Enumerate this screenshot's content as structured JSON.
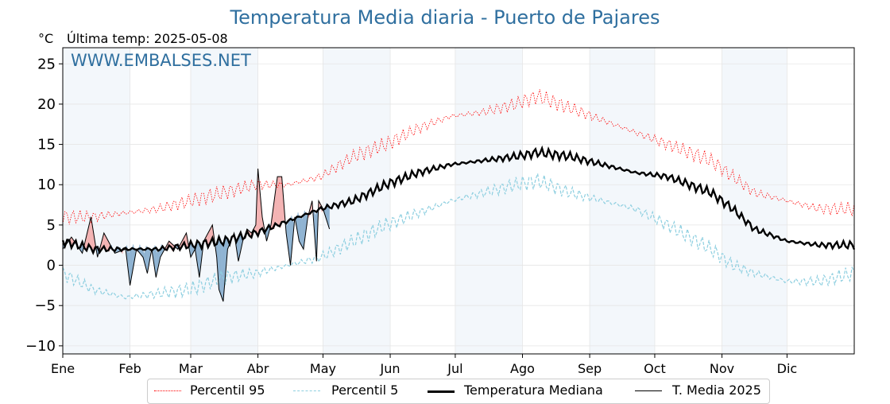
{
  "header": {
    "title": "Temperatura Media diaria - Puerto de Pajares",
    "unit": "°C",
    "last_temp": "Última temp: 2025-05-08",
    "watermark": "WWW.EMBALSES.NET"
  },
  "colors": {
    "p95": "#ff0000",
    "p5": "#8ecfe0",
    "median": "#000000",
    "current": "#000000",
    "above": "#f4b3b3",
    "below": "#8fb3d2",
    "band": "#f3f7fb",
    "grid": "#e6e6e6"
  },
  "legend": {
    "p95": "Percentil 95",
    "p5": "Percentil 5",
    "median": "Temperatura Mediana",
    "current": "T. Media 2025"
  },
  "chart_data": {
    "type": "line",
    "title": "Temperatura Media diaria - Puerto de Pajares",
    "ylabel": "°C",
    "ylim": [
      -11,
      27
    ],
    "yticks": [
      -10,
      -5,
      0,
      5,
      10,
      15,
      20,
      25
    ],
    "ytick_labels": [
      "−10",
      "−5",
      "0",
      "5",
      "10",
      "15",
      "20",
      "25"
    ],
    "xlim": [
      1,
      366
    ],
    "months": [
      "Ene",
      "Feb",
      "Mar",
      "Abr",
      "May",
      "Jun",
      "Jul",
      "Ago",
      "Sep",
      "Oct",
      "Nov",
      "Dic"
    ],
    "month_start_days": [
      1,
      32,
      60,
      91,
      121,
      152,
      182,
      213,
      244,
      274,
      305,
      335
    ],
    "grid": true,
    "legend_position": "bottom",
    "series": [
      {
        "name": "Percentil 95",
        "style": "dotted",
        "points": [
          [
            1,
            6
          ],
          [
            15,
            6
          ],
          [
            30,
            6.5
          ],
          [
            45,
            7
          ],
          [
            60,
            8
          ],
          [
            75,
            9
          ],
          [
            90,
            10
          ],
          [
            105,
            10
          ],
          [
            120,
            11
          ],
          [
            135,
            13.5
          ],
          [
            150,
            15
          ],
          [
            165,
            17
          ],
          [
            180,
            18.5
          ],
          [
            195,
            19
          ],
          [
            210,
            20
          ],
          [
            220,
            21
          ],
          [
            235,
            19.5
          ],
          [
            250,
            18
          ],
          [
            265,
            16.5
          ],
          [
            280,
            15
          ],
          [
            290,
            14
          ],
          [
            300,
            13
          ],
          [
            310,
            11
          ],
          [
            320,
            9
          ],
          [
            335,
            8
          ],
          [
            350,
            7
          ],
          [
            366,
            7
          ]
        ]
      },
      {
        "name": "Percentil 5",
        "style": "dashed",
        "points": [
          [
            1,
            -1
          ],
          [
            15,
            -3
          ],
          [
            30,
            -4
          ],
          [
            45,
            -3.5
          ],
          [
            60,
            -3
          ],
          [
            75,
            -1.5
          ],
          [
            90,
            -1
          ],
          [
            105,
            0
          ],
          [
            120,
            1
          ],
          [
            135,
            3
          ],
          [
            150,
            5
          ],
          [
            165,
            6.5
          ],
          [
            180,
            8
          ],
          [
            195,
            9
          ],
          [
            210,
            10
          ],
          [
            220,
            10.5
          ],
          [
            235,
            9
          ],
          [
            250,
            8
          ],
          [
            265,
            7
          ],
          [
            280,
            5
          ],
          [
            290,
            3.5
          ],
          [
            300,
            2
          ],
          [
            310,
            0
          ],
          [
            320,
            -1
          ],
          [
            335,
            -2
          ],
          [
            350,
            -2
          ],
          [
            366,
            -1
          ]
        ]
      },
      {
        "name": "Temperatura Mediana",
        "style": "solid-thick",
        "points": [
          [
            1,
            3
          ],
          [
            15,
            2
          ],
          [
            30,
            2
          ],
          [
            45,
            2
          ],
          [
            60,
            2.5
          ],
          [
            75,
            3
          ],
          [
            90,
            4
          ],
          [
            105,
            5.5
          ],
          [
            120,
            7
          ],
          [
            135,
            8
          ],
          [
            150,
            10
          ],
          [
            165,
            11.5
          ],
          [
            180,
            12.5
          ],
          [
            195,
            13
          ],
          [
            210,
            13.5
          ],
          [
            220,
            14
          ],
          [
            235,
            13.5
          ],
          [
            250,
            12.5
          ],
          [
            265,
            11.5
          ],
          [
            280,
            11
          ],
          [
            290,
            10
          ],
          [
            300,
            9
          ],
          [
            310,
            7
          ],
          [
            320,
            4.5
          ],
          [
            335,
            3
          ],
          [
            350,
            2.5
          ],
          [
            366,
            2.5
          ]
        ]
      },
      {
        "name": "T. Media 2025",
        "style": "solid-thin",
        "points": [
          [
            1,
            2
          ],
          [
            5,
            3.5
          ],
          [
            10,
            1.5
          ],
          [
            14,
            6
          ],
          [
            17,
            1
          ],
          [
            20,
            4
          ],
          [
            25,
            1.5
          ],
          [
            30,
            2
          ],
          [
            32,
            -2.5
          ],
          [
            35,
            2
          ],
          [
            38,
            1
          ],
          [
            40,
            -1
          ],
          [
            42,
            2
          ],
          [
            44,
            -1.5
          ],
          [
            46,
            1
          ],
          [
            50,
            3
          ],
          [
            54,
            2
          ],
          [
            58,
            4
          ],
          [
            60,
            1
          ],
          [
            62,
            2
          ],
          [
            64,
            -1.5
          ],
          [
            66,
            3
          ],
          [
            70,
            5
          ],
          [
            72,
            1
          ],
          [
            73,
            -3
          ],
          [
            75,
            -4.5
          ],
          [
            77,
            2
          ],
          [
            80,
            4
          ],
          [
            82,
            0.5
          ],
          [
            84,
            3
          ],
          [
            86,
            4.5
          ],
          [
            88,
            4
          ],
          [
            90,
            5
          ],
          [
            91,
            12
          ],
          [
            93,
            6
          ],
          [
            95,
            3
          ],
          [
            97,
            5
          ],
          [
            100,
            11
          ],
          [
            102,
            11
          ],
          [
            104,
            4
          ],
          [
            106,
            0
          ],
          [
            108,
            6
          ],
          [
            110,
            3
          ],
          [
            112,
            2
          ],
          [
            114,
            6
          ],
          [
            116,
            8
          ],
          [
            118,
            0.5
          ],
          [
            119,
            8
          ],
          [
            121,
            7
          ],
          [
            124,
            4.5
          ]
        ]
      }
    ]
  }
}
